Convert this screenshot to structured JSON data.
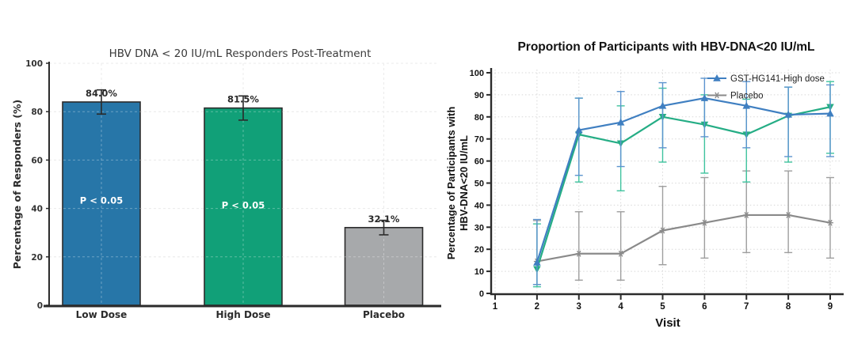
{
  "figure": {
    "background": "#ffffff"
  },
  "chart_data": [
    {
      "type": "bar",
      "title": "HBV DNA < 20 IU/mL Responders Post-Treatment",
      "ylabel": "Percentage of Responders (%)",
      "xlabel": "",
      "categories": [
        "Low Dose",
        "High Dose",
        "Placebo"
      ],
      "values": [
        84.0,
        81.5,
        32.1
      ],
      "value_labels": [
        "84.0%",
        "81.5%",
        "32.1%"
      ],
      "error_plus": [
        5,
        5,
        3
      ],
      "error_minus": [
        5,
        5,
        3
      ],
      "annotations": [
        {
          "text": "P < 0.05",
          "category_index": 0,
          "y": 42
        },
        {
          "text": "P < 0.05",
          "category_index": 1,
          "y": 40
        }
      ],
      "ylim": [
        0,
        100
      ],
      "yticks": [
        0,
        20,
        40,
        60,
        80,
        100
      ],
      "grid": true,
      "colors": {
        "bars": [
          "#2776A8",
          "#11A078",
          "#A7A9AB"
        ],
        "bar_edge": "#2b2b2b",
        "error": "#2b2b2b",
        "title": "#3a3a3a",
        "axis": "#2b2b2b",
        "grid": "#e2e2e2",
        "annotation_text": "#ffffff",
        "tick_label": "#333333"
      }
    },
    {
      "type": "line",
      "title": "Proportion of Participants with HBV-DNA<20 IU/mL",
      "xlabel": "Visit",
      "ylabel_lines": [
        "Percentage of Participants with",
        "HBV-DNA<20 IU/mL"
      ],
      "xlim": [
        1,
        9
      ],
      "xticks": [
        1,
        2,
        3,
        4,
        5,
        6,
        7,
        8,
        9
      ],
      "ylim": [
        0,
        100
      ],
      "yticks": [
        0,
        10,
        20,
        30,
        40,
        50,
        60,
        70,
        80,
        90,
        100
      ],
      "grid": true,
      "legend": {
        "position": "upper-right",
        "entries": [
          "GST-HG141-High dose",
          "Placebo"
        ]
      },
      "series": [
        {
          "name": "Placebo",
          "in_legend": true,
          "color": "#8A8A8A",
          "error_color": "#9E9E9E",
          "marker": "star",
          "x": [
            2,
            3,
            4,
            5,
            6,
            7,
            8,
            9
          ],
          "y": [
            14.5,
            18,
            18,
            28.5,
            32,
            35.5,
            35.5,
            32
          ],
          "err_low": [
            4,
            6,
            6,
            13,
            16,
            18.5,
            18.5,
            16
          ],
          "err_high": [
            33,
            37,
            37,
            48.5,
            52.5,
            55.5,
            55.5,
            52.5
          ]
        },
        {
          "name": "",
          "in_legend": false,
          "color": "#25AD85",
          "error_color": "#3FC39E",
          "marker": "triangle-down",
          "x": [
            2,
            3,
            4,
            5,
            6,
            7,
            8,
            9
          ],
          "y": [
            11,
            72,
            68,
            80,
            76.5,
            72,
            80.5,
            84.5
          ],
          "err_low": [
            3,
            50.5,
            46.5,
            59.5,
            54.5,
            50.5,
            59.5,
            63.5
          ],
          "err_high": [
            31.5,
            88.5,
            85,
            93,
            90,
            88,
            93.5,
            96
          ]
        },
        {
          "name": "GST-HG141-High dose",
          "in_legend": true,
          "color": "#3F7FC1",
          "error_color": "#5C94CF",
          "marker": "triangle-up",
          "x": [
            2,
            3,
            4,
            5,
            6,
            7,
            8,
            9
          ],
          "y": [
            14,
            74,
            77.5,
            85,
            88.5,
            85,
            81,
            81.5
          ],
          "err_low": [
            4,
            53.5,
            57.5,
            66,
            71,
            66,
            62,
            62
          ],
          "err_high": [
            33.5,
            88.5,
            91.5,
            95.5,
            97.5,
            96,
            93.5,
            94.5
          ]
        }
      ],
      "colors": {
        "title": "#111111",
        "axis": "#2b2b2b",
        "grid": "#d8d8d8",
        "tick_label": "#111111",
        "legend_text": "#222222"
      }
    }
  ]
}
